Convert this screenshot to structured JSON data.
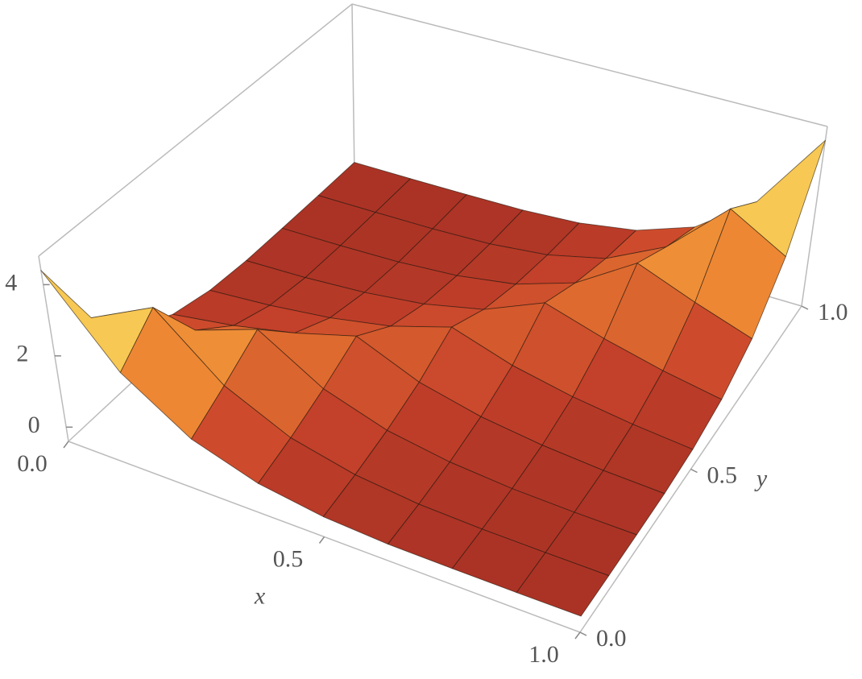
{
  "chart_data": {
    "type": "surface",
    "x_label": "x",
    "y_label": "y",
    "x": [
      0,
      0.125,
      0.25,
      0.375,
      0.5,
      0.625,
      0.75,
      0.875,
      1
    ],
    "y": [
      0,
      0.125,
      0.25,
      0.375,
      0.5,
      0.625,
      0.75,
      0.875,
      1
    ],
    "z": [
      [
        4.4,
        2.16,
        0.96,
        0.39,
        0.13,
        0.03,
        0.01,
        0,
        0
      ],
      [
        2.16,
        3.05,
        1.48,
        0.66,
        0.27,
        0.09,
        0.03,
        0.01,
        0
      ],
      [
        0.96,
        1.48,
        2.09,
        1.03,
        0.48,
        0.21,
        0.08,
        0.03,
        0.01
      ],
      [
        0.39,
        0.66,
        1.03,
        1.51,
        0.8,
        0.42,
        0.21,
        0.09,
        0.03
      ],
      [
        0.13,
        0.27,
        0.48,
        0.8,
        1.32,
        0.8,
        0.48,
        0.27,
        0.13
      ],
      [
        0.03,
        0.09,
        0.21,
        0.42,
        0.8,
        1.51,
        1.03,
        0.66,
        0.39
      ],
      [
        0.01,
        0.03,
        0.08,
        0.21,
        0.48,
        1.03,
        2.09,
        1.48,
        0.96
      ],
      [
        0,
        0.01,
        0.03,
        0.09,
        0.27,
        0.66,
        1.48,
        3.05,
        2.16
      ],
      [
        0,
        0,
        0.01,
        0.03,
        0.13,
        0.39,
        0.96,
        2.16,
        4.4
      ]
    ],
    "xlim": [
      0,
      1
    ],
    "ylim": [
      0,
      1
    ],
    "zlim": [
      -0.4,
      4.8
    ],
    "xticks": [
      {
        "value": 0,
        "label": "0.0"
      },
      {
        "value": 0.5,
        "label": "0.5"
      },
      {
        "value": 1,
        "label": "1.0"
      }
    ],
    "yticks": [
      {
        "value": 0,
        "label": "0.0"
      },
      {
        "value": 0.5,
        "label": "0.5"
      },
      {
        "value": 1,
        "label": "1.0"
      }
    ],
    "zticks": [
      0,
      2,
      4
    ],
    "colors": [
      "#9b2a22",
      "#c8432b",
      "#ec8432",
      "#f7cb55",
      "#fbf0bb"
    ],
    "mesh": true
  }
}
